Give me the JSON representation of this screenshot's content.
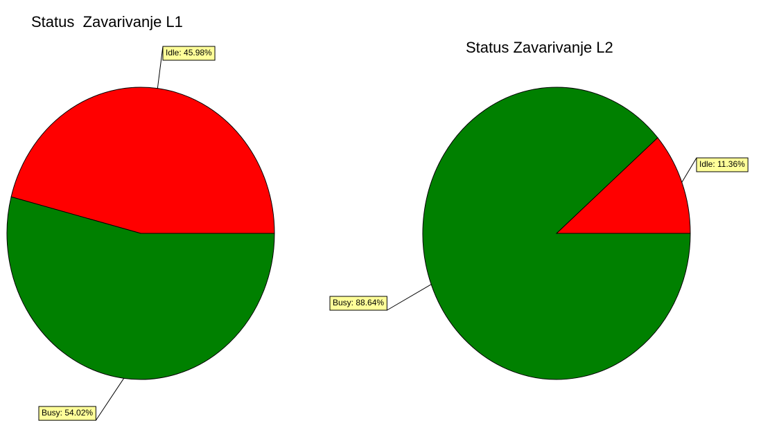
{
  "chart_data": [
    {
      "type": "pie",
      "title": "Status  Zavarivanje L1",
      "values": [
        45.98,
        54.02
      ],
      "value_labels": [
        "Idle: 45.98%",
        "Busy: 54.02%"
      ],
      "colors": [
        "#ff0000",
        "#008000"
      ]
    },
    {
      "type": "pie",
      "title": "Status Zavarivanje L2",
      "values": [
        11.36,
        88.64
      ],
      "value_labels": [
        "Idle: 11.36%",
        "Busy: 88.64%"
      ],
      "colors": [
        "#ff0000",
        "#008000"
      ]
    }
  ]
}
